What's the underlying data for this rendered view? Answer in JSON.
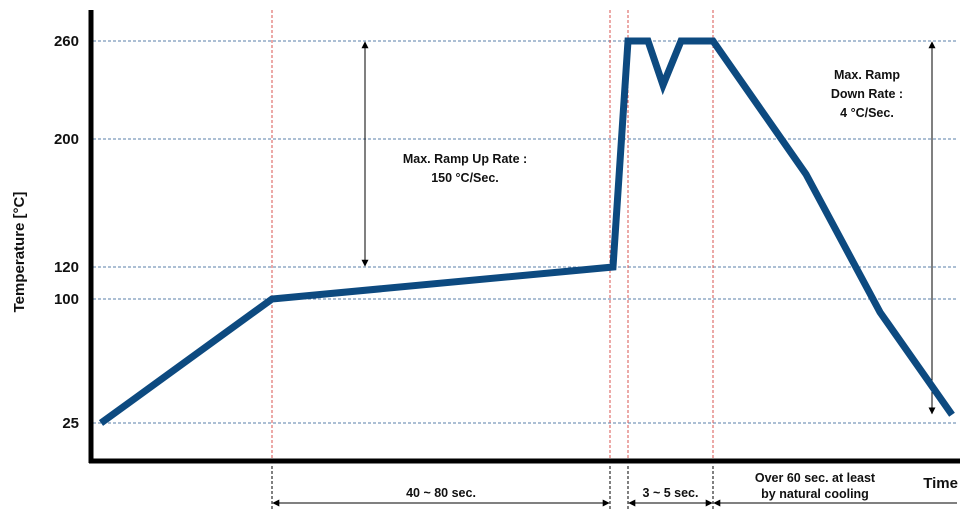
{
  "chart_data": {
    "type": "line",
    "xlabel": "Time",
    "ylabel": "Temperature [°C]",
    "y_ticks": [
      {
        "value": 260,
        "label": "260"
      },
      {
        "value": 200,
        "label": "200"
      },
      {
        "value": 120,
        "label": "120"
      },
      {
        "value": 100,
        "label": "100"
      },
      {
        "value": 25,
        "label": "25"
      }
    ],
    "grid_y": [
      260,
      200,
      120,
      100,
      25
    ],
    "phase_markers": [
      "end-of-first-ramp",
      "end-of-soak",
      "start-of-peak",
      "end-of-peak"
    ],
    "series": [
      {
        "color": "#0d4a80",
        "points": [
          {
            "t": 0,
            "y": 25
          },
          {
            "t": 6,
            "y": 100
          },
          {
            "t": 18,
            "y": 120
          },
          {
            "t": 18.5,
            "y": 260
          },
          {
            "t": 19.2,
            "y": 260
          },
          {
            "t": 20,
            "y": 233
          },
          {
            "t": 20.7,
            "y": 260
          },
          {
            "t": 21.7,
            "y": 260
          },
          {
            "t": 24.7,
            "y": 178
          },
          {
            "t": 27.5,
            "y": 92
          },
          {
            "t": 30,
            "y": 30
          }
        ]
      }
    ],
    "annotations": [
      {
        "id": "ramp-up",
        "lines": [
          "Max. Ramp Up Rate :",
          "150 °C/Sec."
        ],
        "from_y": 260,
        "to_y": 120
      },
      {
        "id": "ramp-down",
        "lines": [
          "Max. Ramp",
          "Down Rate :",
          "4 °C/Sec."
        ],
        "from_y": 260,
        "to_y": 30
      }
    ],
    "spans": [
      {
        "id": "soak",
        "lines": [
          "40 ~ 80 sec."
        ]
      },
      {
        "id": "peak",
        "lines": [
          "3 ~ 5 sec."
        ]
      },
      {
        "id": "cooling",
        "lines": [
          "Over 60 sec. at least",
          "by natural cooling"
        ]
      }
    ],
    "colors": {
      "curve": "#0d4a80",
      "grid": "#5a7fa8",
      "phase_line": "#d9534f",
      "axis": "#000000"
    }
  }
}
